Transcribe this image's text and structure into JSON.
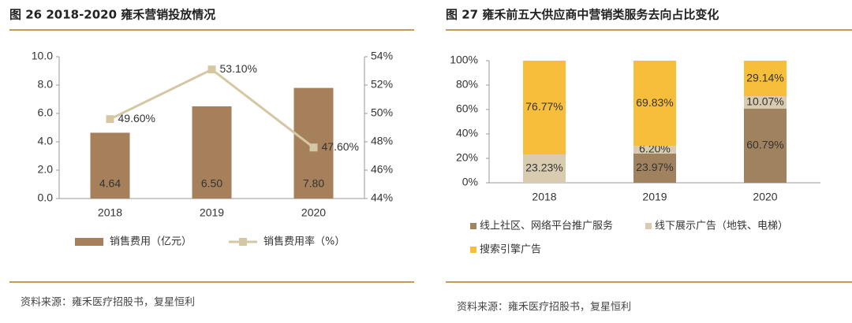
{
  "chart_data": [
    {
      "type": "bar-line",
      "title": "图 26 2018-2020 雍禾营销投放情况",
      "categories": [
        "2018",
        "2019",
        "2020"
      ],
      "series": [
        {
          "name": "销售费用（亿元）",
          "color": "#a5805a",
          "type": "bar",
          "values": [
            4.64,
            6.5,
            7.8
          ],
          "value_labels": [
            "4.64",
            "6.50",
            "7.80"
          ]
        },
        {
          "name": "销售费用率（%）",
          "color": "#d6c7a4",
          "type": "line",
          "axis": "y2",
          "values": [
            49.6,
            53.1,
            47.6
          ],
          "value_labels": [
            "49.60%",
            "53.10%",
            "47.60%"
          ]
        }
      ],
      "ylim": [
        0,
        10
      ],
      "yticks": [
        {
          "value": 0,
          "label": "0.0"
        },
        {
          "value": 2,
          "label": "2.0"
        },
        {
          "value": 4,
          "label": "4.0"
        },
        {
          "value": 6,
          "label": "6.0"
        },
        {
          "value": 8,
          "label": "8.0"
        },
        {
          "value": 10,
          "label": "10.0"
        }
      ],
      "y2lim": [
        44,
        54
      ],
      "y2ticks": [
        {
          "value": 44,
          "label": "44%"
        },
        {
          "value": 46,
          "label": "46%"
        },
        {
          "value": 48,
          "label": "48%"
        },
        {
          "value": 50,
          "label": "50%"
        },
        {
          "value": 52,
          "label": "52%"
        },
        {
          "value": 54,
          "label": "54%"
        }
      ],
      "source": "资料来源：雍禾医疗招股书，复星恒利"
    },
    {
      "type": "stacked-bar",
      "title": "图 27 雍禾前五大供应商中营销类服务去向占比变化",
      "categories": [
        "2018",
        "2019",
        "2020"
      ],
      "series": [
        {
          "name": "线上社区、网络平台推广服务",
          "color": "#a0825e",
          "values": [
            0,
            23.97,
            60.79
          ],
          "value_labels": [
            null,
            "23.97%",
            "60.79%"
          ]
        },
        {
          "name": "线下展示广告（地铁、电梯）",
          "color": "#d8cbb0",
          "values": [
            23.23,
            6.2,
            10.07
          ],
          "value_labels": [
            "23.23%",
            "6.20%",
            "10.07%"
          ]
        },
        {
          "name": "搜索引擎广告",
          "color": "#f6be3a",
          "values": [
            76.77,
            69.83,
            29.14
          ],
          "value_labels": [
            "76.77%",
            "69.83%",
            "29.14%"
          ]
        }
      ],
      "ylim": [
        0,
        100
      ],
      "yticks": [
        {
          "value": 0,
          "label": "0%"
        },
        {
          "value": 20,
          "label": "20%"
        },
        {
          "value": 40,
          "label": "40%"
        },
        {
          "value": 60,
          "label": "60%"
        },
        {
          "value": 80,
          "label": "80%"
        },
        {
          "value": 100,
          "label": "100%"
        }
      ],
      "source": "资料来源：雍禾医疗招股书，复星恒利"
    }
  ]
}
